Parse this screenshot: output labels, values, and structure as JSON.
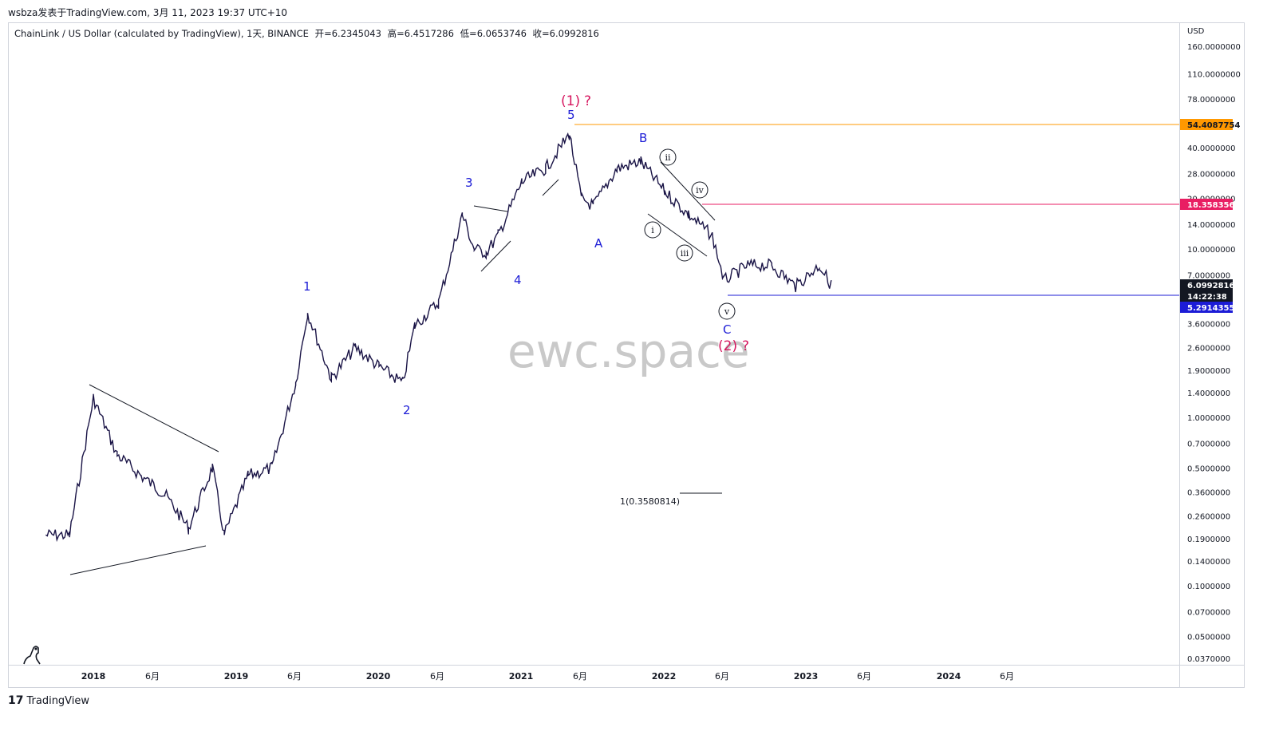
{
  "header": {
    "title": "wsbza发表于TradingView.com, 3月 11, 2023 19:37 UTC+10"
  },
  "symbol": {
    "name": "ChainLink / US Dollar (calculated by TradingView), 1天, BINANCE",
    "open": "开=6.2345043",
    "high": "高=6.4517286",
    "low": "低=6.0653746",
    "close": "收=6.0992816"
  },
  "price_axis": {
    "currency": "USD",
    "ticks": [
      "160.0000000",
      "110.0000000",
      "78.0000000",
      "40.0000000",
      "28.0000000",
      "20.0000000",
      "14.0000000",
      "10.0000000",
      "7.0000000",
      "3.6000000",
      "2.6000000",
      "1.9000000",
      "1.4000000",
      "1.0000000",
      "0.7000000",
      "0.5000000",
      "0.3600000",
      "0.2600000",
      "0.1900000",
      "0.1400000",
      "0.1000000",
      "0.0700000",
      "0.0500000",
      "0.0370000"
    ]
  },
  "time_axis": {
    "ticks": [
      "2018",
      "6月",
      "2019",
      "6月",
      "2020",
      "6月",
      "2021",
      "6月",
      "2022",
      "6月",
      "2023",
      "6月",
      "2024",
      "6月"
    ]
  },
  "price_tags": [
    {
      "label": "54.4087754",
      "bg": "#ff9800",
      "fg": "#131722"
    },
    {
      "label": "18.3583569",
      "bg": "#e91e63",
      "fg": "#ffffff"
    },
    {
      "label": "6.0992816",
      "bg": "#131722",
      "fg": "#ffffff"
    },
    {
      "label": "14:22:38",
      "bg": "#131722",
      "fg": "#ffffff"
    },
    {
      "label": "5.2914355",
      "bg": "#1c1cd6",
      "fg": "#ffffff"
    }
  ],
  "wave_labels": {
    "w1": "1",
    "w2": "2",
    "w3": "3",
    "w4": "4",
    "w5": "5",
    "A": "A",
    "B": "B",
    "C": "C",
    "major1": "(1)",
    "major2": "(2)",
    "question": "?",
    "i": "i",
    "ii": "ii",
    "iii": "iii",
    "iv": "iv",
    "v": "v"
  },
  "annotation": "1(0.3580814)",
  "watermark": "ewc.space",
  "footer": {
    "brand": "TradingView",
    "logo": "17"
  },
  "colors": {
    "candles": "#1a1446",
    "orange_line": "#ff9800",
    "pink_line": "#e91e63",
    "blue_line": "#1c1cd6"
  },
  "chart_data": {
    "type": "line",
    "scale": "log",
    "title": "ChainLink / US Dollar (calculated by TradingView), 1天, BINANCE",
    "xlabel": "",
    "ylabel": "USD",
    "ylim": [
      0.037,
      160
    ],
    "x": [
      "2017-09",
      "2017-11",
      "2018-01",
      "2018-03",
      "2018-05",
      "2018-07",
      "2018-09",
      "2018-11",
      "2018-12",
      "2019-02",
      "2019-04",
      "2019-06",
      "2019-07",
      "2019-09",
      "2019-11",
      "2020-01",
      "2020-03",
      "2020-04",
      "2020-06",
      "2020-08",
      "2020-09",
      "2020-10",
      "2020-11",
      "2021-01",
      "2021-03",
      "2021-05",
      "2021-06",
      "2021-07",
      "2021-09",
      "2021-11",
      "2022-01",
      "2022-03",
      "2022-05",
      "2022-06",
      "2022-08",
      "2022-10",
      "2022-12",
      "2023-02",
      "2023-03"
    ],
    "series": [
      {
        "values": [
          0.2,
          0.2,
          1.3,
          0.6,
          0.45,
          0.35,
          0.22,
          0.5,
          0.2,
          0.45,
          0.5,
          1.6,
          4.2,
          1.7,
          2.6,
          2.0,
          1.6,
          3.5,
          4.8,
          16,
          10,
          9.5,
          12,
          25,
          30,
          48,
          20,
          18,
          30,
          33,
          22,
          16,
          12,
          6.5,
          8,
          8.0,
          6,
          8,
          6.1
        ]
      }
    ],
    "levels": [
      54.4087754,
      18.3583569,
      5.2914355
    ],
    "grid": false
  }
}
